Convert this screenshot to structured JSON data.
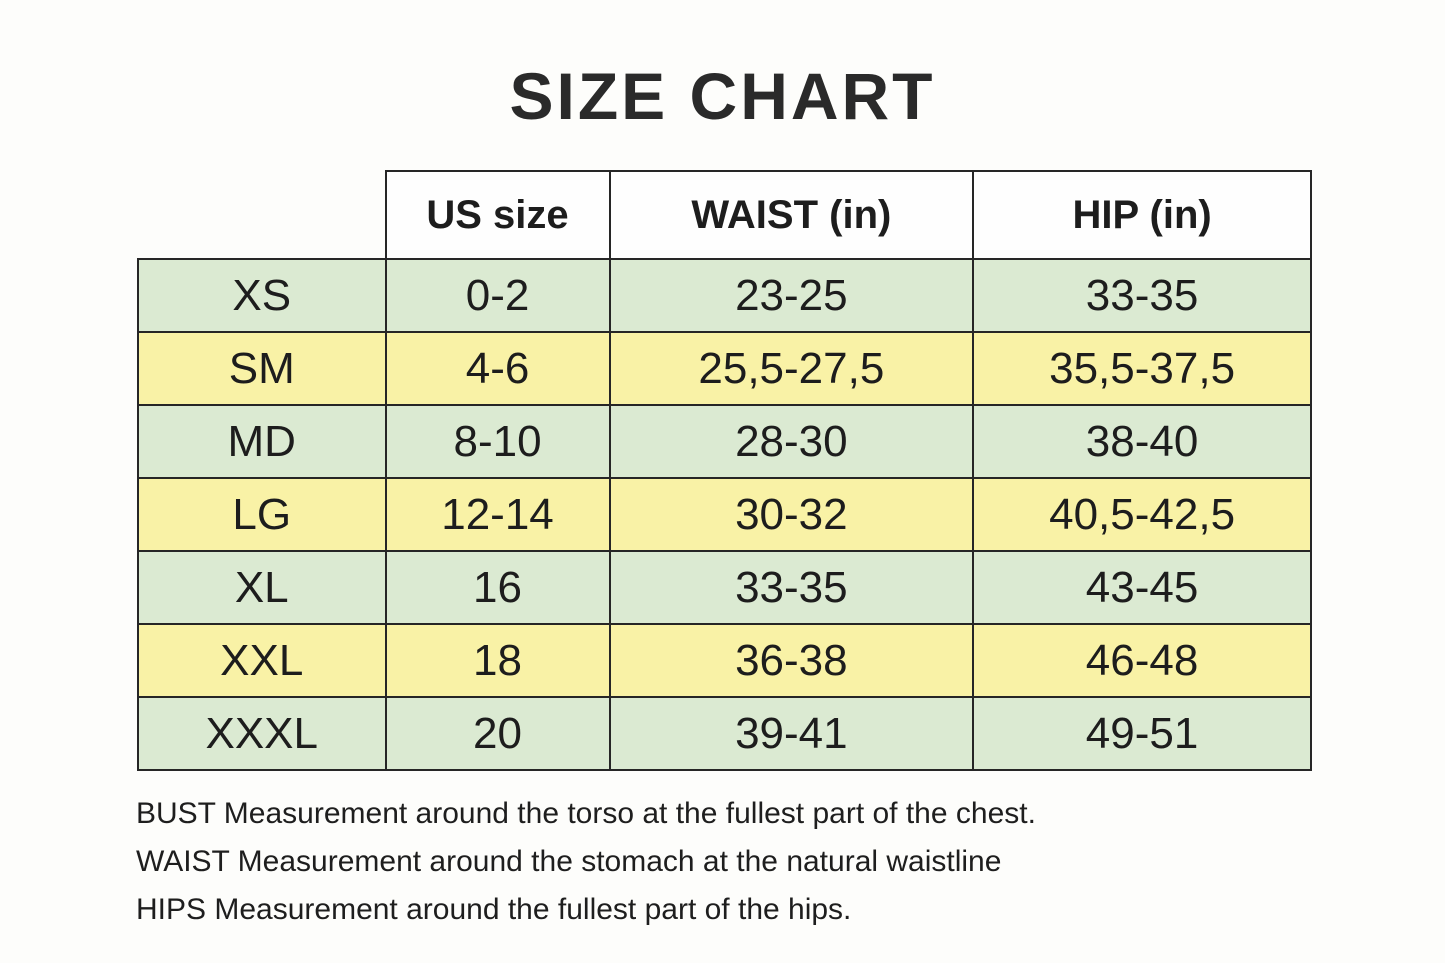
{
  "page": {
    "background_color": "#fdfdfb",
    "text_color": "#1d1d1d",
    "border_color": "#262626",
    "row_green_color": "#dbead2",
    "row_yellow_color": "#f9f2a6"
  },
  "title": "SIZE CHART",
  "chart_data": {
    "type": "table",
    "title": "SIZE CHART",
    "columns": [
      "US size",
      "WAIST (in)",
      "HIP (in)"
    ],
    "first_column_has_no_header": true,
    "rows": [
      [
        "XS",
        "0-2",
        "23-25",
        "33-35"
      ],
      [
        "SM",
        "4-6",
        "25,5-27,5",
        "35,5-37,5"
      ],
      [
        "MD",
        "8-10",
        "28-30",
        "38-40"
      ],
      [
        "LG",
        "12-14",
        "30-32",
        "40,5-42,5"
      ],
      [
        "XL",
        "16",
        "33-35",
        "43-45"
      ],
      [
        "XXL",
        "18",
        "36-38",
        "46-48"
      ],
      [
        "XXXL",
        "20",
        "39-41",
        "49-51"
      ]
    ],
    "row_stripe_pattern": [
      "green",
      "yellow",
      "green",
      "yellow",
      "green",
      "yellow",
      "green"
    ],
    "legend_position": "none",
    "grid": true
  },
  "footnotes": [
    "BUST Measurement around the torso at the fullest part of the chest.",
    "WAIST Measurement around the stomach at the natural waistline",
    "HIPS Measurement around the fullest part of the hips."
  ]
}
